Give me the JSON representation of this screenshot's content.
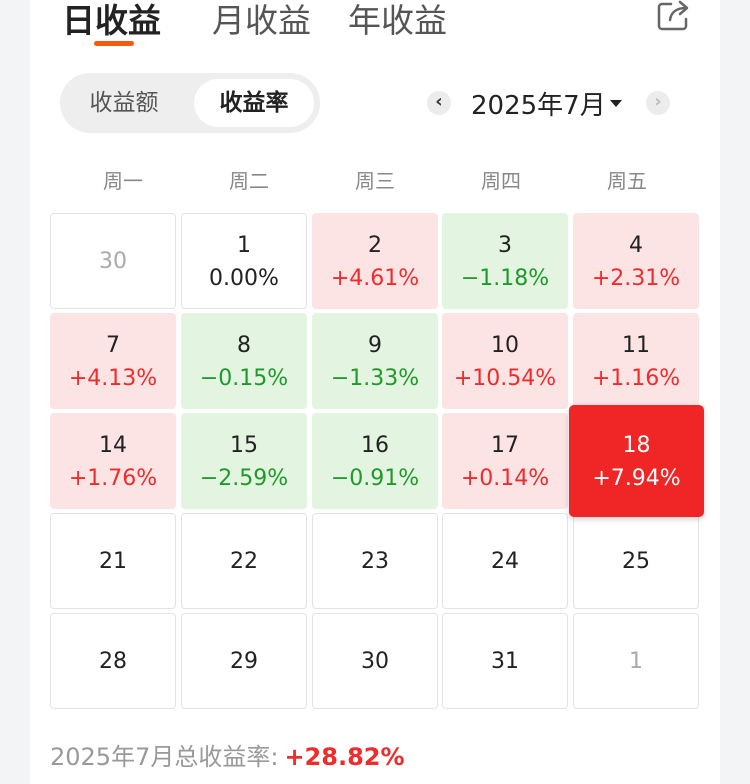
{
  "tabs": [
    {
      "label": "日收益"
    },
    {
      "label": "月收益"
    },
    {
      "label": "年收益"
    }
  ],
  "active_tab": "日收益",
  "share_icon": "share-icon",
  "segment": {
    "options": [
      {
        "label": "收益额"
      },
      {
        "label": "收益率"
      }
    ],
    "selected": "收益率"
  },
  "month_selector": {
    "label": "2025年7月",
    "prev_icon": "chevron-left-icon",
    "next_icon": "chevron-right-icon",
    "caret_icon": "caret-down-icon"
  },
  "weekdays": [
    "周一",
    "周二",
    "周三",
    "周四",
    "周五"
  ],
  "colors": {
    "accent": "#f55a10",
    "positive": "#ef2b2b",
    "negative": "#1f9a2a",
    "positive_bg": "#fce4e4",
    "negative_bg": "#e3f4e1",
    "selected_bg": "#f02525"
  },
  "calendar": {
    "weeks": [
      [
        {
          "day": "30",
          "value": ""
        },
        {
          "day": "1",
          "value": "0.00%"
        },
        {
          "day": "2",
          "value": "+4.61%"
        },
        {
          "day": "3",
          "value": "−1.18%"
        },
        {
          "day": "4",
          "value": "+2.31%"
        }
      ],
      [
        {
          "day": "7",
          "value": "+4.13%"
        },
        {
          "day": "8",
          "value": "−0.15%"
        },
        {
          "day": "9",
          "value": "−1.33%"
        },
        {
          "day": "10",
          "value": "+10.54%"
        },
        {
          "day": "11",
          "value": "+1.16%"
        }
      ],
      [
        {
          "day": "14",
          "value": "+1.76%"
        },
        {
          "day": "15",
          "value": "−2.59%"
        },
        {
          "day": "16",
          "value": "−0.91%"
        },
        {
          "day": "17",
          "value": "+0.14%"
        },
        {
          "day": "18",
          "value": "+7.94%"
        }
      ],
      [
        {
          "day": "21",
          "value": ""
        },
        {
          "day": "22",
          "value": ""
        },
        {
          "day": "23",
          "value": ""
        },
        {
          "day": "24",
          "value": ""
        },
        {
          "day": "25",
          "value": ""
        }
      ],
      [
        {
          "day": "28",
          "value": ""
        },
        {
          "day": "29",
          "value": ""
        },
        {
          "day": "30",
          "value": ""
        },
        {
          "day": "31",
          "value": ""
        },
        {
          "day": "1",
          "value": ""
        }
      ]
    ],
    "out_of_month": [
      [
        0,
        0
      ],
      [
        4,
        4
      ]
    ],
    "selected": [
      2,
      4
    ]
  },
  "total": {
    "label": "2025年7月总收益率:",
    "value": "+28.82%"
  }
}
